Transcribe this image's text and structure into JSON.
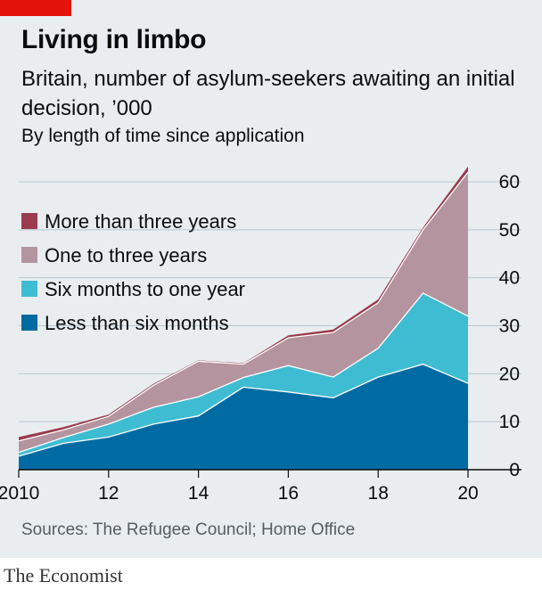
{
  "title": "Living in limbo",
  "subtitle": "Britain, number of asylum-seekers awaiting an initial decision, ’000",
  "note": "By length of time since application",
  "source": "Sources: The Refugee Council; Home Office",
  "brand": "The Economist",
  "colors": {
    "accent": "#e3120b",
    "less_than_six_months": "#006ba2",
    "six_months_to_one_year": "#3ebcd2",
    "one_to_three_years": "#b4949e",
    "more_than_three_years": "#9a3b4e"
  },
  "chart_data": {
    "type": "area",
    "stacked": true,
    "x": [
      2010,
      2011,
      2012,
      2013,
      2014,
      2015,
      2016,
      2017,
      2018,
      2019,
      2020
    ],
    "x_tick_labels": [
      "2010",
      "12",
      "14",
      "16",
      "18",
      "20"
    ],
    "x_tick_values": [
      2010,
      2012,
      2014,
      2016,
      2018,
      2020
    ],
    "y_ticks": [
      0,
      10,
      20,
      30,
      40,
      50,
      60
    ],
    "ylim": [
      0,
      62
    ],
    "y_axis_side": "right",
    "grid": true,
    "legend_position": "top-left",
    "series": [
      {
        "name": "Less than six months",
        "color": "#006ba2",
        "values": [
          2.8,
          5.5,
          6.8,
          9.5,
          11.2,
          17.2,
          16.2,
          15.0,
          19.3,
          22.0,
          18.0
        ]
      },
      {
        "name": "Six months to one year",
        "color": "#3ebcd2",
        "values": [
          0.8,
          1.2,
          2.7,
          3.5,
          4.0,
          2.0,
          5.5,
          4.3,
          6.0,
          14.8,
          14.0
        ]
      },
      {
        "name": "One to three years",
        "color": "#b4949e",
        "values": [
          2.4,
          1.6,
          1.6,
          4.6,
          7.4,
          2.8,
          5.8,
          9.3,
          9.5,
          13.2,
          30.0
        ]
      },
      {
        "name": "More than three years",
        "color": "#9a3b4e",
        "values": [
          0.8,
          0.6,
          0.4,
          0.3,
          0.2,
          0.2,
          0.5,
          0.6,
          0.7,
          0.5,
          1.2
        ]
      }
    ]
  }
}
